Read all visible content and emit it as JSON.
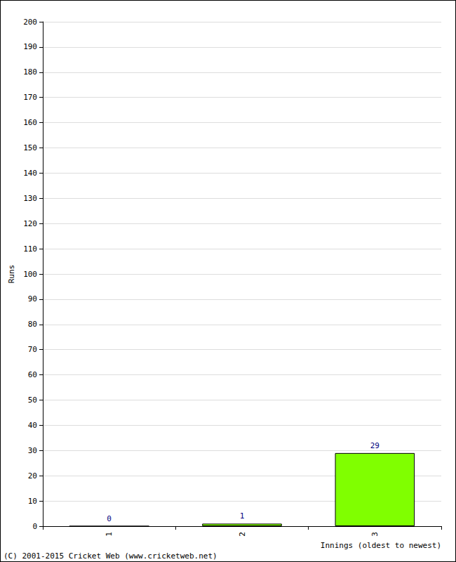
{
  "chart_data": {
    "type": "bar",
    "x_label": "Innings (oldest to newest)",
    "y_label": "Runs",
    "categories": [
      "1",
      "2",
      "3"
    ],
    "values": [
      0,
      1,
      29
    ],
    "color": "#80ff00",
    "ylim": [
      0,
      200
    ],
    "yticks": [
      0,
      10,
      20,
      30,
      40,
      50,
      60,
      70,
      80,
      90,
      100,
      110,
      120,
      130,
      140,
      150,
      160,
      170,
      180,
      190,
      200
    ],
    "grid": true,
    "data_labels": true,
    "annotations": [
      "(C) 2001-2015 Cricket Web (www.cricketweb.net)"
    ]
  }
}
